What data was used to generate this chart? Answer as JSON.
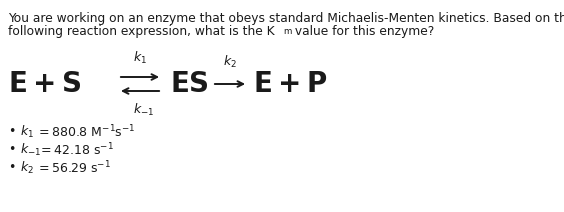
{
  "bg_color": "#ffffff",
  "text_color": "#1a1a1a",
  "orange_color": "#e07000",
  "intro_line1": "You are working on an enzyme that obeys standard Michaelis-Menten kinetics. Based on the",
  "intro_line2_part1": "following reaction expression, what is the K",
  "intro_line2_sub": "m",
  "intro_line2_part2": " value for this enzyme?",
  "figsize": [
    5.64,
    2.12
  ],
  "dpi": 100,
  "eq_fontsize": 20,
  "label_fontsize": 9.0,
  "bullet_fontsize": 9.0,
  "intro_fontsize": 8.8
}
